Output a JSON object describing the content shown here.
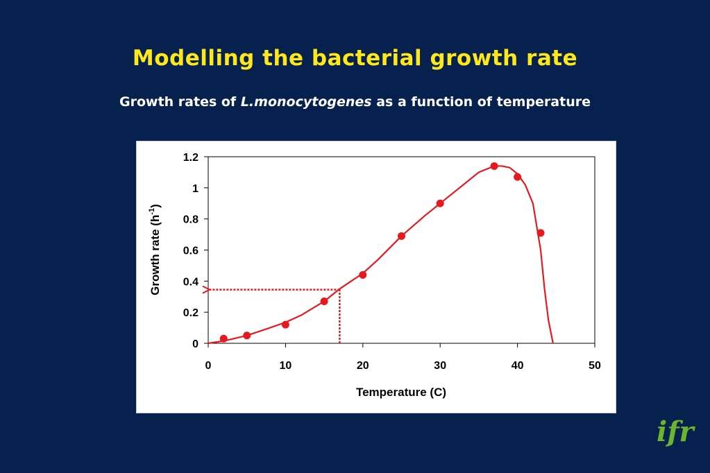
{
  "slide": {
    "title": "Modelling the bacterial growth rate",
    "subtitle_prefix": "Growth rates of ",
    "subtitle_species": "L.monocytogenes",
    "subtitle_suffix": " as a function of temperature",
    "logo_text": "ifr"
  },
  "colors": {
    "background": "#06214d",
    "title": "#ffe81a",
    "subtitle": "#ffffff",
    "series": "#e8191e",
    "logo": "#6cb42c"
  },
  "chart_data": {
    "type": "scatter",
    "title": "",
    "xlabel": "Temperature (C)",
    "ylabel": "Growth rate (h",
    "ylabel_superscript": "-1",
    "ylabel_close": ")",
    "xlim": [
      0,
      50
    ],
    "ylim": [
      0,
      1.2
    ],
    "x_ticks": [
      "0",
      "10",
      "20",
      "30",
      "40",
      "50"
    ],
    "y_ticks": [
      "0",
      "0.2",
      "0.4",
      "0.6",
      "0.8",
      "1",
      "1.2"
    ],
    "grid": false,
    "legend": "none",
    "series": [
      {
        "type": "scatter",
        "x": [
          2,
          5,
          10,
          15,
          20,
          25,
          30,
          37,
          40,
          43
        ],
        "values": [
          0.03,
          0.05,
          0.12,
          0.27,
          0.44,
          0.69,
          0.9,
          1.14,
          1.07,
          0.71
        ]
      },
      {
        "type": "line",
        "x": [
          0,
          2,
          5,
          8,
          10,
          12,
          15,
          17,
          20,
          22,
          25,
          28,
          30,
          33,
          35,
          37,
          38,
          39,
          40,
          41,
          42,
          43,
          43.5,
          44,
          44.6
        ],
        "values": [
          0,
          0.015,
          0.05,
          0.1,
          0.135,
          0.18,
          0.27,
          0.35,
          0.45,
          0.54,
          0.69,
          0.82,
          0.9,
          1.02,
          1.1,
          1.14,
          1.14,
          1.13,
          1.09,
          1.02,
          0.9,
          0.6,
          0.35,
          0.15,
          0
        ]
      }
    ],
    "annotation": {
      "x": 17,
      "y": 0.345
    }
  }
}
